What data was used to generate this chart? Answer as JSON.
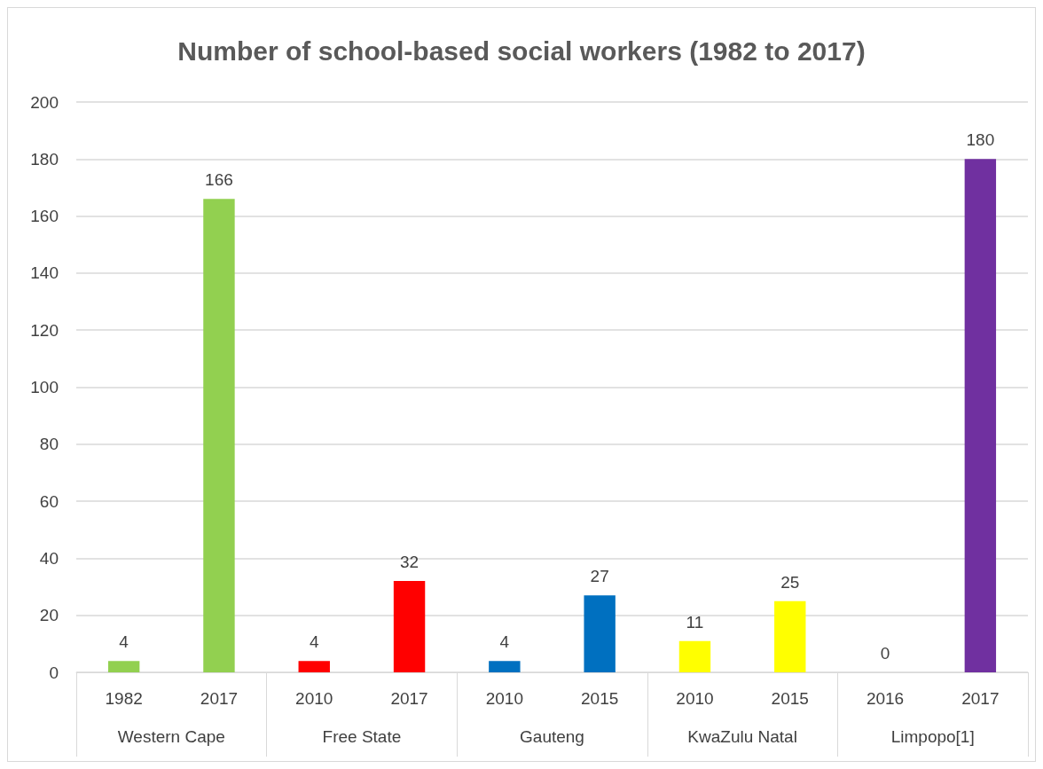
{
  "chart_data": {
    "type": "bar",
    "title": "Number of school-based social workers (1982 to 2017)",
    "categories": [
      "1982",
      "2017",
      "2010",
      "2017",
      "2010",
      "2015",
      "2010",
      "2015",
      "2016",
      "2017"
    ],
    "values": [
      4,
      166,
      4,
      32,
      4,
      27,
      11,
      25,
      0,
      180
    ],
    "colors": [
      "#92d050",
      "#92d050",
      "#ff0000",
      "#ff0000",
      "#0070c0",
      "#0070c0",
      "#ffff00",
      "#ffff00",
      "#7030a0",
      "#7030a0"
    ],
    "annotations": [
      "Western Cape",
      "Free State",
      "Gauteng",
      "KwaZulu Natal",
      "Limpopo[1]"
    ],
    "ylim": [
      0,
      200
    ],
    "yticks": [
      0,
      20,
      40,
      60,
      80,
      100,
      120,
      140,
      160,
      180,
      200
    ],
    "grid": "y",
    "data_labels": true
  }
}
